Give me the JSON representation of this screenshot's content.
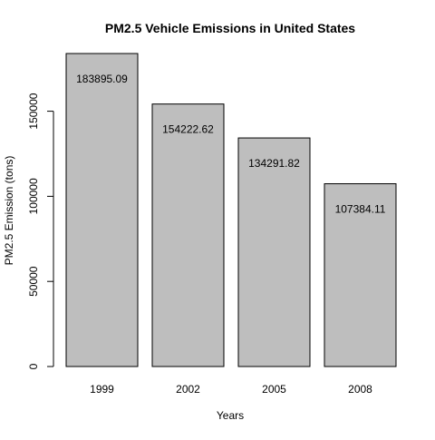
{
  "chart_data": {
    "type": "bar",
    "title": "PM2.5 Vehicle Emissions in United States",
    "xlabel": "Years",
    "ylabel": "PM2.5 Emission (tons)",
    "categories": [
      "1999",
      "2002",
      "2005",
      "2008"
    ],
    "values": [
      183895.09,
      154222.62,
      134291.82,
      107384.11
    ],
    "value_labels": [
      "183895.09",
      "154222.62",
      "134291.82",
      "107384.11"
    ],
    "yticks": [
      0,
      50000,
      100000,
      150000
    ],
    "ytick_labels": [
      "0",
      "50000",
      "100000",
      "150000"
    ],
    "ylim": [
      0,
      183895.09
    ],
    "grid": false,
    "bar_fill": "#bebebe",
    "bar_stroke": "#000000"
  }
}
